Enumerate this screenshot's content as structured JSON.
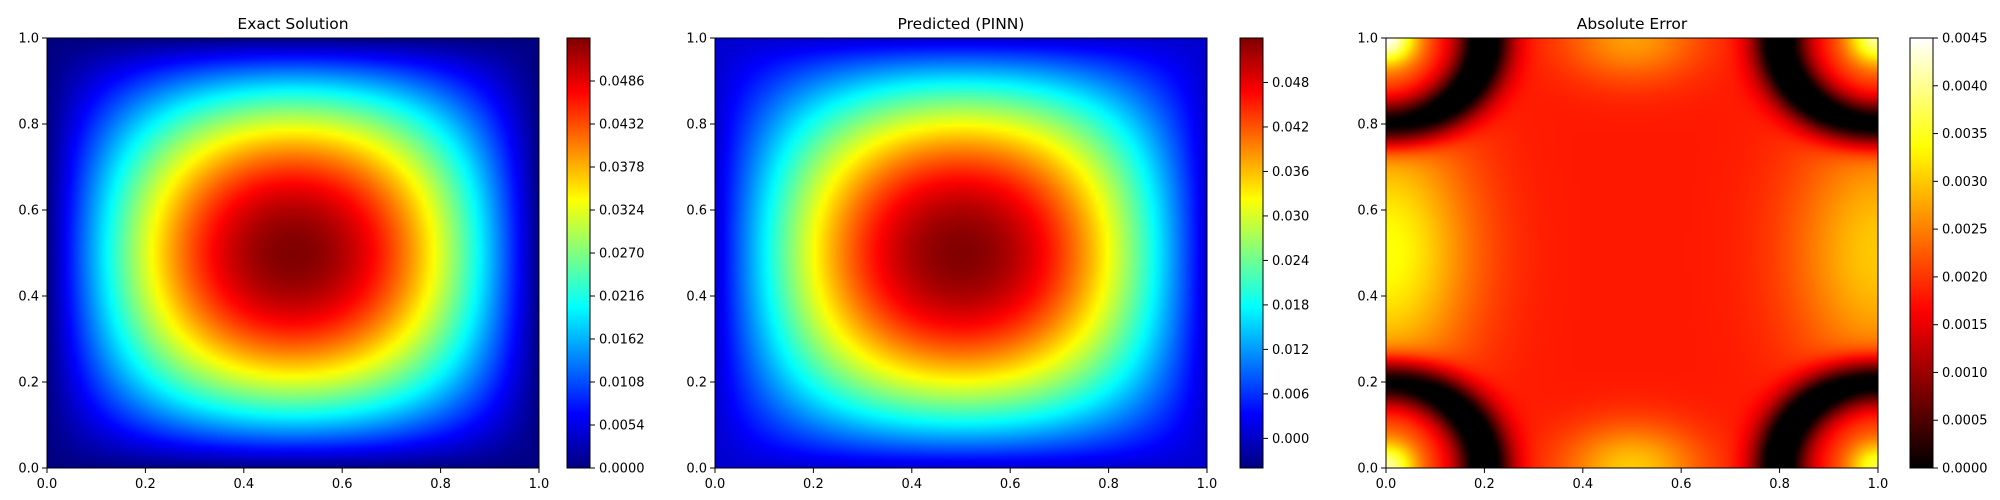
{
  "chart_data": [
    {
      "type": "heatmap",
      "title": "Exact Solution",
      "field": "exact",
      "colormap": "jet",
      "xlim": [
        0.0,
        1.0
      ],
      "ylim": [
        0.0,
        1.0
      ],
      "x_ticks": [
        "0.0",
        "0.2",
        "0.4",
        "0.6",
        "0.8",
        "1.0"
      ],
      "y_ticks": [
        "0.0",
        "0.2",
        "0.4",
        "0.6",
        "0.8",
        "1.0"
      ],
      "colorbar": {
        "range": [
          0.0,
          0.054
        ],
        "ticks": [
          "0.0000",
          "0.0054",
          "0.0108",
          "0.0162",
          "0.0216",
          "0.0270",
          "0.0324",
          "0.0378",
          "0.0432",
          "0.0486"
        ]
      },
      "description_values": {
        "peak_location": [
          0.5,
          0.5
        ],
        "peak_value": 0.054,
        "boundary_value": 0.0
      }
    },
    {
      "type": "heatmap",
      "title": "Predicted (PINN)",
      "field": "predicted",
      "colormap": "jet",
      "xlim": [
        0.0,
        1.0
      ],
      "ylim": [
        0.0,
        1.0
      ],
      "x_ticks": [
        "0.0",
        "0.2",
        "0.4",
        "0.6",
        "0.8",
        "1.0"
      ],
      "y_ticks": [
        "0.0",
        "0.2",
        "0.4",
        "0.6",
        "0.8",
        "1.0"
      ],
      "colorbar": {
        "range": [
          -0.004,
          0.054
        ],
        "ticks": [
          "0.000",
          "0.006",
          "0.012",
          "0.018",
          "0.024",
          "0.030",
          "0.036",
          "0.042",
          "0.048"
        ]
      },
      "description_values": {
        "peak_location": [
          0.5,
          0.5
        ],
        "peak_value": 0.054,
        "boundary_value": 0.0
      }
    },
    {
      "type": "heatmap",
      "title": "Absolute Error",
      "field": "error",
      "colormap": "hot",
      "xlim": [
        0.0,
        1.0
      ],
      "ylim": [
        0.0,
        1.0
      ],
      "x_ticks": [
        "0.0",
        "0.2",
        "0.4",
        "0.6",
        "0.8",
        "1.0"
      ],
      "y_ticks": [
        "0.0",
        "0.2",
        "0.4",
        "0.6",
        "0.8",
        "1.0"
      ],
      "colorbar": {
        "range": [
          0.0,
          0.0045
        ],
        "ticks": [
          "0.0000",
          "0.0005",
          "0.0010",
          "0.0015",
          "0.0020",
          "0.0025",
          "0.0030",
          "0.0035",
          "0.0040",
          "0.0045"
        ]
      },
      "description_values": {
        "minimum_regions": [
          [
            0.07,
            0.07
          ],
          [
            0.93,
            0.07
          ],
          [
            0.07,
            0.93
          ],
          [
            0.93,
            0.93
          ]
        ],
        "maximum_value": 0.0045,
        "center_value": 0.0018
      }
    }
  ]
}
